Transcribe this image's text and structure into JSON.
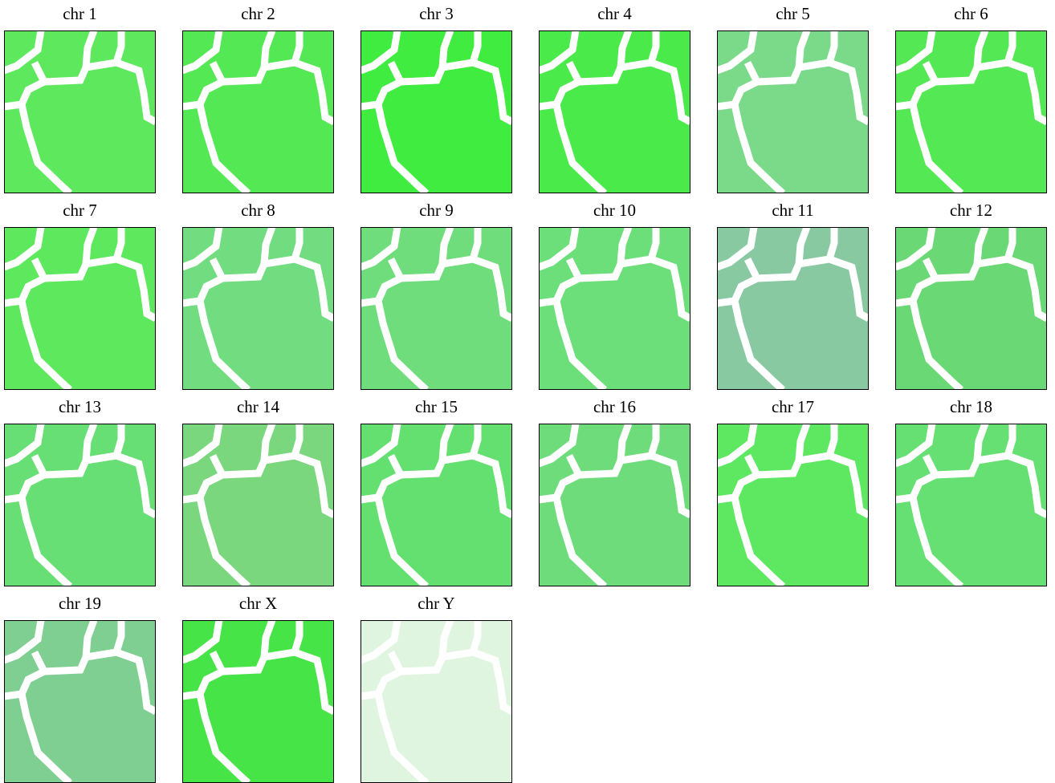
{
  "chart_data": [
    {
      "type": "heatmap",
      "title": "chr 1",
      "color": "#5ee85e"
    },
    {
      "type": "heatmap",
      "title": "chr 2",
      "color": "#55e855"
    },
    {
      "type": "heatmap",
      "title": "chr 3",
      "color": "#3fec3f"
    },
    {
      "type": "heatmap",
      "title": "chr 4",
      "color": "#4aea4a"
    },
    {
      "type": "heatmap",
      "title": "chr 5",
      "color": "#7bd98a"
    },
    {
      "type": "heatmap",
      "title": "chr 6",
      "color": "#55e855"
    },
    {
      "type": "heatmap",
      "title": "chr 7",
      "color": "#5ee85e"
    },
    {
      "type": "heatmap",
      "title": "chr 8",
      "color": "#72dc80"
    },
    {
      "type": "heatmap",
      "title": "chr 9",
      "color": "#6fdd7c"
    },
    {
      "type": "heatmap",
      "title": "chr 10",
      "color": "#6cdf7a"
    },
    {
      "type": "heatmap",
      "title": "chr 11",
      "color": "#88c9a2"
    },
    {
      "type": "heatmap",
      "title": "chr 12",
      "color": "#6ad874"
    },
    {
      "type": "heatmap",
      "title": "chr 13",
      "color": "#68df74"
    },
    {
      "type": "heatmap",
      "title": "chr 14",
      "color": "#7ad77e"
    },
    {
      "type": "heatmap",
      "title": "chr 15",
      "color": "#64e070"
    },
    {
      "type": "heatmap",
      "title": "chr 16",
      "color": "#6fdc7c"
    },
    {
      "type": "heatmap",
      "title": "chr 17",
      "color": "#5ee862"
    },
    {
      "type": "heatmap",
      "title": "chr 18",
      "color": "#66e072"
    },
    {
      "type": "heatmap",
      "title": "chr 19",
      "color": "#80cf92"
    },
    {
      "type": "heatmap",
      "title": "chr X",
      "color": "#46e446"
    },
    {
      "type": "heatmap",
      "title": "chr Y",
      "color": "#dff5df"
    }
  ]
}
